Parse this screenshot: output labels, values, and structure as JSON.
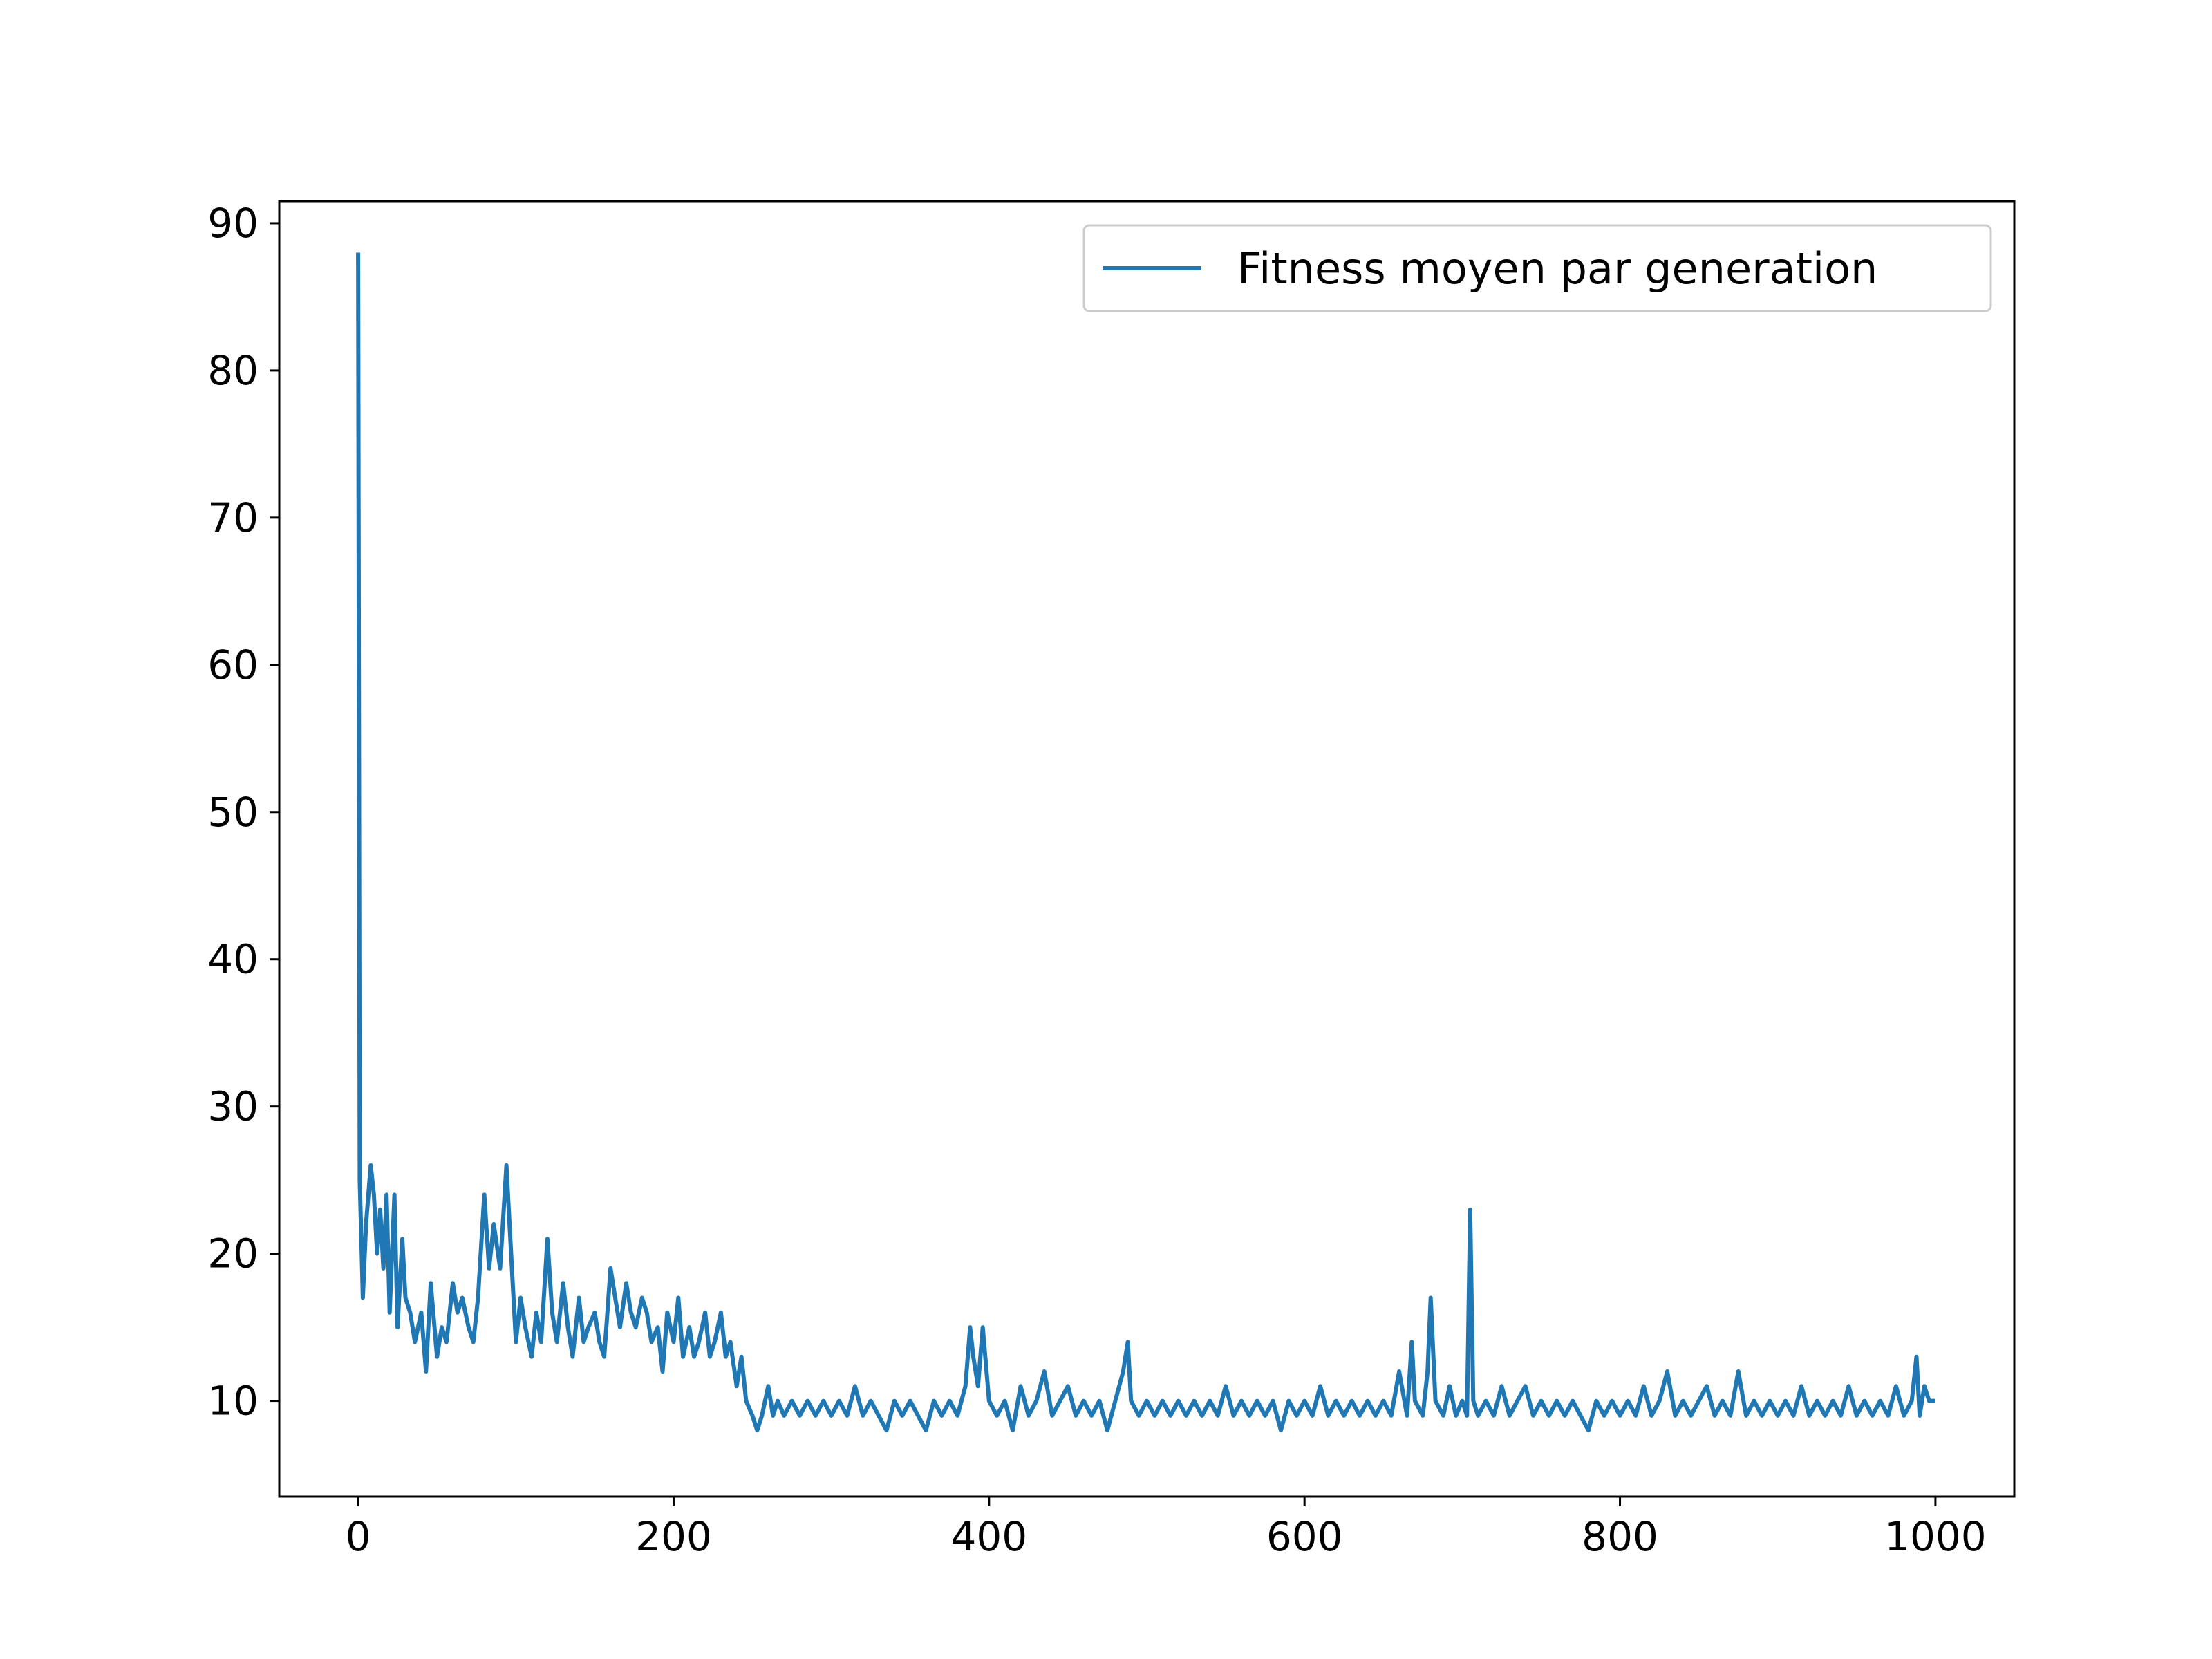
{
  "chart_data": {
    "type": "line",
    "title": "",
    "xlabel": "",
    "ylabel": "",
    "xlim": [
      -50,
      1050
    ],
    "ylim": [
      3.5,
      91.5
    ],
    "xticks": [
      0,
      200,
      400,
      600,
      800,
      1000
    ],
    "yticks": [
      10,
      20,
      30,
      40,
      50,
      60,
      70,
      80,
      90
    ],
    "grid": false,
    "legend": {
      "placement": "top-right"
    },
    "series": [
      {
        "name": "Fitness moyen par generation",
        "color": "#1f77b4",
        "x": [
          0,
          1,
          2,
          3,
          5,
          8,
          10,
          12,
          14,
          16,
          18,
          20,
          23,
          25,
          28,
          30,
          33,
          36,
          40,
          43,
          46,
          50,
          53,
          56,
          60,
          63,
          66,
          70,
          73,
          76,
          80,
          83,
          86,
          90,
          94,
          97,
          100,
          103,
          106,
          110,
          113,
          116,
          120,
          123,
          126,
          130,
          133,
          136,
          140,
          143,
          146,
          150,
          153,
          156,
          160,
          163,
          166,
          170,
          173,
          176,
          180,
          183,
          186,
          190,
          193,
          196,
          200,
          203,
          206,
          210,
          213,
          216,
          220,
          223,
          226,
          230,
          233,
          236,
          240,
          243,
          246,
          250,
          253,
          256,
          260,
          263,
          266,
          270,
          275,
          280,
          285,
          290,
          295,
          300,
          305,
          310,
          315,
          320,
          325,
          330,
          335,
          340,
          345,
          350,
          355,
          360,
          365,
          370,
          375,
          380,
          385,
          388,
          390,
          393,
          396,
          400,
          405,
          410,
          415,
          420,
          425,
          430,
          435,
          440,
          445,
          450,
          455,
          460,
          465,
          470,
          475,
          480,
          485,
          488,
          490,
          495,
          500,
          505,
          510,
          515,
          520,
          525,
          530,
          535,
          540,
          545,
          550,
          555,
          560,
          565,
          570,
          575,
          580,
          585,
          590,
          595,
          600,
          605,
          610,
          615,
          620,
          625,
          630,
          635,
          640,
          645,
          650,
          655,
          660,
          665,
          668,
          670,
          675,
          678,
          680,
          683,
          688,
          692,
          696,
          700,
          703,
          705,
          707,
          710,
          715,
          720,
          725,
          730,
          735,
          740,
          745,
          750,
          755,
          760,
          765,
          770,
          775,
          780,
          785,
          790,
          795,
          800,
          805,
          810,
          815,
          820,
          825,
          830,
          835,
          840,
          845,
          850,
          855,
          860,
          865,
          870,
          875,
          880,
          885,
          890,
          895,
          900,
          905,
          910,
          915,
          920,
          925,
          930,
          935,
          940,
          945,
          950,
          955,
          960,
          965,
          970,
          975,
          980,
          985,
          988,
          990,
          993,
          996,
          1000
        ],
        "y": [
          88,
          25,
          21,
          17,
          22,
          26,
          24,
          20,
          23,
          19,
          24,
          16,
          24,
          15,
          21,
          17,
          16,
          14,
          16,
          12,
          18,
          13,
          15,
          14,
          18,
          16,
          17,
          15,
          14,
          17,
          24,
          19,
          22,
          19,
          26,
          20,
          14,
          17,
          15,
          13,
          16,
          14,
          21,
          16,
          14,
          18,
          15,
          13,
          17,
          14,
          15,
          16,
          14,
          13,
          19,
          17,
          15,
          18,
          16,
          15,
          17,
          16,
          14,
          15,
          12,
          16,
          14,
          17,
          13,
          15,
          13,
          14,
          16,
          13,
          14,
          16,
          13,
          14,
          11,
          13,
          10,
          9,
          8,
          9,
          11,
          9,
          10,
          9,
          10,
          9,
          10,
          9,
          10,
          9,
          10,
          9,
          11,
          9,
          10,
          9,
          8,
          10,
          9,
          10,
          9,
          8,
          10,
          9,
          10,
          9,
          11,
          15,
          13,
          11,
          15,
          10,
          9,
          10,
          8,
          11,
          9,
          10,
          12,
          9,
          10,
          11,
          9,
          10,
          9,
          10,
          8,
          10,
          12,
          14,
          10,
          9,
          10,
          9,
          10,
          9,
          10,
          9,
          10,
          9,
          10,
          9,
          11,
          9,
          10,
          9,
          10,
          9,
          10,
          8,
          10,
          9,
          10,
          9,
          11,
          9,
          10,
          9,
          10,
          9,
          10,
          9,
          10,
          9,
          12,
          9,
          14,
          10,
          9,
          12,
          17,
          10,
          9,
          11,
          9,
          10,
          9,
          23,
          10,
          9,
          10,
          9,
          11,
          9,
          10,
          11,
          9,
          10,
          9,
          10,
          9,
          10,
          9,
          8,
          10,
          9,
          10,
          9,
          10,
          9,
          11,
          9,
          10,
          12,
          9,
          10,
          9,
          10,
          11,
          9,
          10,
          9,
          12,
          9,
          10,
          9,
          10,
          9,
          10,
          9,
          11,
          9,
          10,
          9,
          10,
          9,
          11,
          9,
          10,
          9,
          10,
          9,
          11,
          9,
          10,
          13,
          9,
          11,
          10,
          10
        ]
      }
    ]
  }
}
